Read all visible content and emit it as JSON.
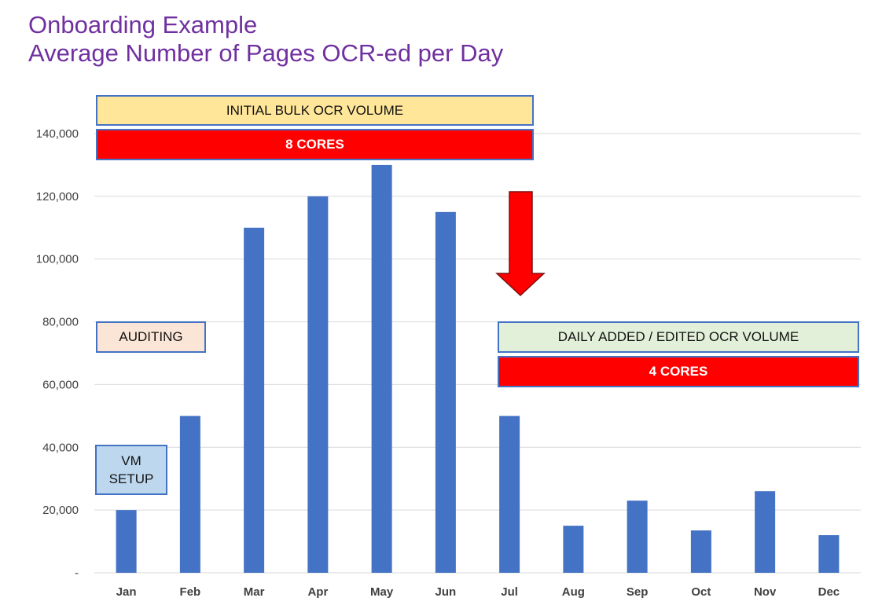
{
  "title": {
    "line1": "Onboarding Example",
    "line2": "Average Number of Pages OCR-ed per Day"
  },
  "annotations": {
    "initial_bulk": "INITIAL BULK OCR VOLUME",
    "eight_cores": "8 CORES",
    "auditing": "AUDITING",
    "vm_setup_line1": "VM",
    "vm_setup_line2": "SETUP",
    "daily_added": "DAILY ADDED / EDITED OCR VOLUME",
    "four_cores": "4 CORES"
  },
  "colors": {
    "title": "#7030a0",
    "bar": "#4472c4",
    "grid": "#d9d9d9",
    "arrow": "#ff0000",
    "cores_box": "#ff0000",
    "bulk_box": "#ffe699",
    "auditing_box": "#fbe5d6",
    "daily_box": "#e2f0d9",
    "vm_box": "#bdd7ee"
  },
  "chart_data": {
    "type": "bar",
    "categories": [
      "Jan",
      "Feb",
      "Mar",
      "Apr",
      "May",
      "Jun",
      "Jul",
      "Aug",
      "Sep",
      "Oct",
      "Nov",
      "Dec"
    ],
    "values": [
      20000,
      50000,
      110000,
      120000,
      130000,
      115000,
      50000,
      15000,
      23000,
      13500,
      26000,
      12000
    ],
    "ylim": [
      0,
      140000
    ],
    "yticks": [
      0,
      20000,
      40000,
      60000,
      80000,
      100000,
      120000,
      140000
    ],
    "ytick_labels": [
      "-",
      "20,000",
      "40,000",
      "60,000",
      "80,000",
      "100,000",
      "120,000",
      "140,000"
    ],
    "grid": true,
    "legend": "none"
  }
}
